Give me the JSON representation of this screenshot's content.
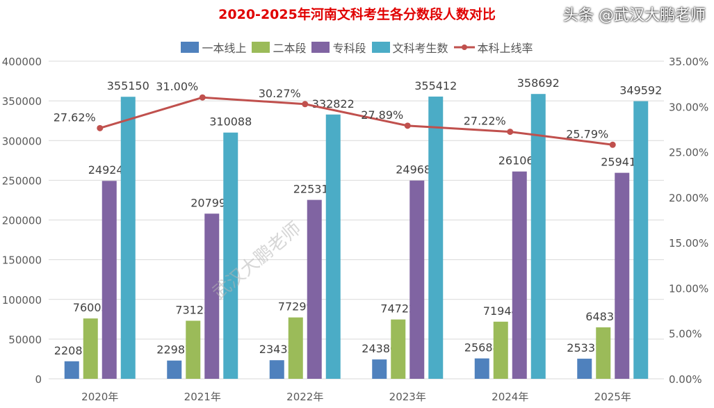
{
  "chart_data": {
    "type": "bar",
    "title": "2020-2025年河南文科考生各分数段人数对比",
    "categories": [
      "2020年",
      "2021年",
      "2022年",
      "2023年",
      "2024年",
      "2025年"
    ],
    "series": [
      {
        "name": "一本线上",
        "color": "#4f81bd",
        "values": [
          22087,
          22987,
          23432,
          24386,
          25688,
          25337
        ]
      },
      {
        "name": "二本段",
        "color": "#9bbb59",
        "values": [
          76003,
          73125,
          77299,
          74722,
          71944,
          64837
        ]
      },
      {
        "name": "专科段",
        "color": "#8064a2",
        "values": [
          249247,
          207998,
          225310,
          249688,
          261060,
          259418
        ]
      },
      {
        "name": "文科考生数",
        "color": "#4bacc6",
        "values": [
          355150,
          310088,
          332822,
          355412,
          358692,
          349592
        ]
      }
    ],
    "line": {
      "name": "本科上线率",
      "color": "#c0504d",
      "values": [
        27.62,
        31.0,
        30.27,
        27.89,
        27.22,
        25.79
      ],
      "labels": [
        "27.62%",
        "31.00%",
        "30.27%",
        "27.89%",
        "27.22%",
        "25.79%"
      ]
    },
    "ylim": [
      0,
      400000
    ],
    "yticks": [
      "0",
      "50000",
      "100000",
      "150000",
      "200000",
      "250000",
      "300000",
      "350000",
      "400000"
    ],
    "y2lim": [
      0,
      35
    ],
    "y2ticks": [
      "0.00%",
      "5.00%",
      "10.00%",
      "15.00%",
      "20.00%",
      "25.00%",
      "30.00%",
      "35.00%"
    ],
    "grid": true,
    "legend": "top"
  },
  "watermark": "武汉大鹏老师",
  "credit": "头条 @武汉大鹏老师"
}
